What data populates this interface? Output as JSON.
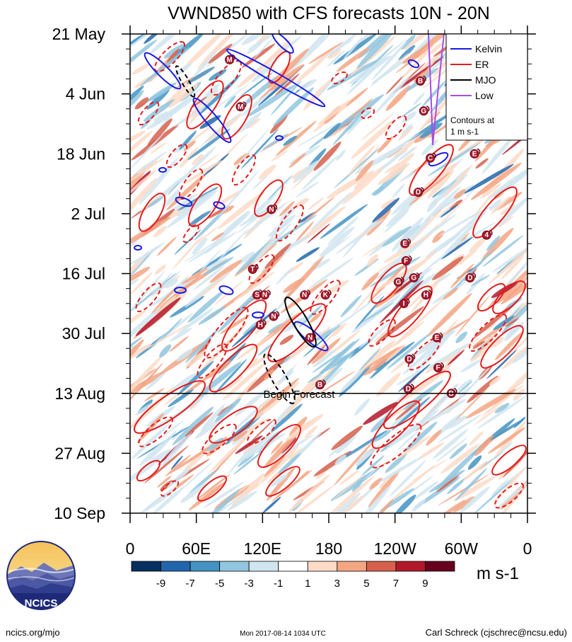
{
  "chart_data": {
    "type": "heatmap",
    "title": "VWND850 with CFS forecasts  10N - 20N",
    "y_axis_labels": [
      "21 May",
      "4 Jun",
      "18 Jun",
      "2 Jul",
      "16 Jul",
      "30 Jul",
      "13 Aug",
      "27 Aug",
      "10 Sep"
    ],
    "y_range": [
      "2017-05-21",
      "2017-09-10"
    ],
    "x_axis_labels": [
      "0",
      "60E",
      "120E",
      "180",
      "120W",
      "60W",
      "0"
    ],
    "x_range": [
      0,
      360
    ],
    "forecast_line_label": "Begin Forecast",
    "forecast_date": "2017-08-13",
    "colorbar": {
      "units": "m s-1",
      "levels": [
        "-9",
        "-7",
        "-5",
        "-3",
        "-1",
        "1",
        "3",
        "5",
        "7",
        "9"
      ],
      "colors": [
        "#053061",
        "#2166ac",
        "#4393c3",
        "#92c5de",
        "#d1e5f0",
        "#ffffff",
        "#fddbc7",
        "#f4a582",
        "#d6604d",
        "#b2182b",
        "#67001f"
      ]
    },
    "legend": {
      "entries": [
        {
          "name": "Kelvin",
          "color": "#1a1ae6"
        },
        {
          "name": "ER",
          "color": "#e61a1a"
        },
        {
          "name": "MJO",
          "color": "#000000"
        },
        {
          "name": "Low",
          "color": "#a64ce6"
        }
      ],
      "note_line1": "Contours at",
      "note_line2": "1 m s-1",
      "placement": "top-right"
    },
    "storms": [
      {
        "letter": "M",
        "lon": 100,
        "date": "2017-06-07"
      },
      {
        "letter": "M",
        "lon": 90,
        "date": "2017-05-27"
      },
      {
        "letter": "B",
        "lon": 263,
        "date": "2017-06-01"
      },
      {
        "letter": "G",
        "lon": 266,
        "date": "2017-06-08"
      },
      {
        "letter": "C",
        "lon": 272,
        "date": "2017-06-19"
      },
      {
        "letter": "D",
        "lon": 261,
        "date": "2017-06-27"
      },
      {
        "letter": "E",
        "lon": 312,
        "date": "2017-06-18"
      },
      {
        "letter": "N",
        "lon": 128,
        "date": "2017-07-01"
      },
      {
        "letter": "4",
        "lon": 323,
        "date": "2017-07-07"
      },
      {
        "letter": "E",
        "lon": 249,
        "date": "2017-07-09"
      },
      {
        "letter": "F",
        "lon": 250,
        "date": "2017-07-13"
      },
      {
        "letter": "T",
        "lon": 111,
        "date": "2017-07-15"
      },
      {
        "letter": "D",
        "lon": 308,
        "date": "2017-07-17"
      },
      {
        "letter": "G",
        "lon": 257,
        "date": "2017-07-17"
      },
      {
        "letter": "G",
        "lon": 243,
        "date": "2017-07-18"
      },
      {
        "letter": "S",
        "lon": 115,
        "date": "2017-07-21"
      },
      {
        "letter": "N",
        "lon": 122,
        "date": "2017-07-21"
      },
      {
        "letter": "N",
        "lon": 158,
        "date": "2017-07-21"
      },
      {
        "letter": "K",
        "lon": 177,
        "date": "2017-07-21"
      },
      {
        "letter": "H",
        "lon": 268,
        "date": "2017-07-21"
      },
      {
        "letter": "I",
        "lon": 248,
        "date": "2017-07-23"
      },
      {
        "letter": "N",
        "lon": 130,
        "date": "2017-07-26"
      },
      {
        "letter": "H",
        "lon": 118,
        "date": "2017-07-28"
      },
      {
        "letter": "N",
        "lon": 163,
        "date": "2017-07-31"
      },
      {
        "letter": "E",
        "lon": 278,
        "date": "2017-07-31"
      },
      {
        "letter": "D",
        "lon": 253,
        "date": "2017-08-05"
      },
      {
        "letter": "F",
        "lon": 279,
        "date": "2017-08-07"
      },
      {
        "letter": "B",
        "lon": 172,
        "date": "2017-08-11"
      },
      {
        "letter": "D",
        "lon": 252,
        "date": "2017-08-12"
      },
      {
        "letter": "B",
        "lon": 291,
        "date": "2017-08-13"
      }
    ]
  },
  "footer": {
    "left": "ncics.org/mjo",
    "center": "Mon 2017-08-14 1034 UTC",
    "right": "Carl Schreck (cjschrec@ncsu.edu)",
    "logo_text": "NCICS"
  }
}
